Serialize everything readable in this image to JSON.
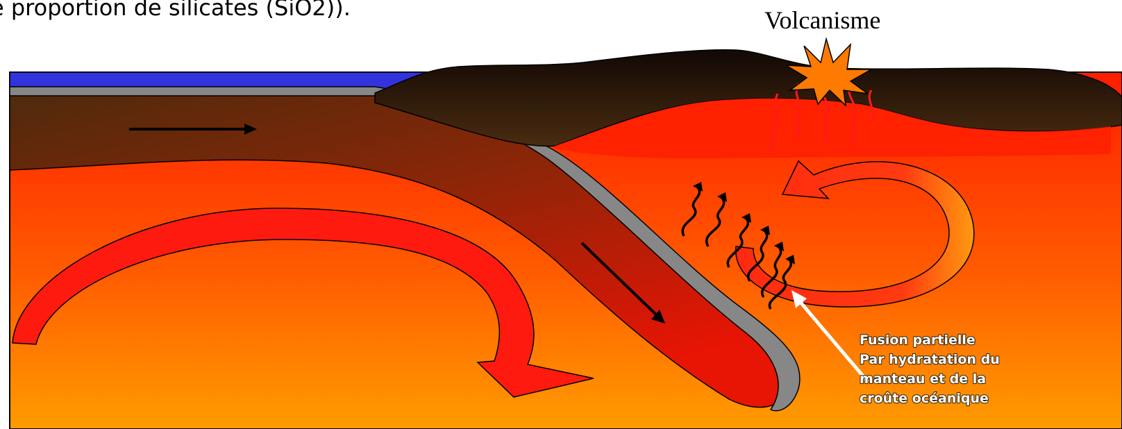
{
  "intro_text": "e proportion de silicates (SiO2)).",
  "volcanism_label": "Volcanisme",
  "fusion_label": {
    "line1": "Fusion partielle",
    "line2": "Par hydratation du",
    "line3": "manteau et de la",
    "line4": "croûte océanique"
  },
  "colors": {
    "ocean": "#3333dd",
    "oceanic_crust": "#808080",
    "continental_crust": "#2b1a0a",
    "mantle_top": "#ff1c00",
    "mantle_bottom": "#ff9a00",
    "convection_arrow": "#ff1a1a",
    "fluid_arrow": "#000000",
    "explosion": "#ff7a00"
  }
}
